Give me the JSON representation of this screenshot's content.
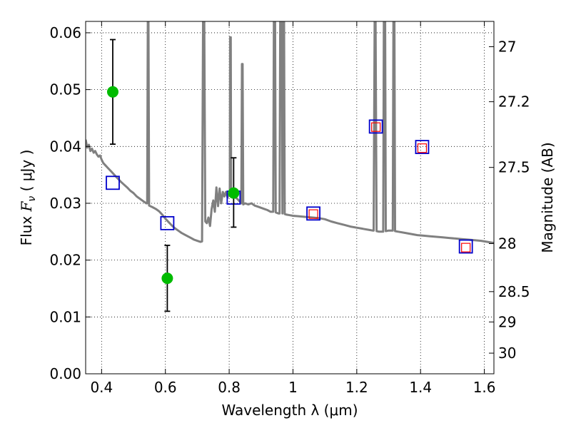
{
  "chart_data": {
    "type": "scatter",
    "xlabel": "Wavelength  λ (μm)",
    "ylabel": "Flux  F_ν  ( μJy )",
    "ylabel_right": "Magnitude (AB)",
    "xlim": [
      0.35,
      1.63
    ],
    "ylim": [
      0.0,
      0.062
    ],
    "grid": true,
    "x_ticks": [
      {
        "value": 0.4,
        "label": "0.4"
      },
      {
        "value": 0.6,
        "label": "0.6"
      },
      {
        "value": 0.8,
        "label": "0.8"
      },
      {
        "value": 1.0,
        "label": "1"
      },
      {
        "value": 1.2,
        "label": "1.2"
      },
      {
        "value": 1.4,
        "label": "1.4"
      },
      {
        "value": 1.6,
        "label": "1.6"
      }
    ],
    "y_ticks": [
      {
        "value": 0.0,
        "label": "0.00"
      },
      {
        "value": 0.01,
        "label": "0.01"
      },
      {
        "value": 0.02,
        "label": "0.02"
      },
      {
        "value": 0.03,
        "label": "0.03"
      },
      {
        "value": 0.04,
        "label": "0.04"
      },
      {
        "value": 0.05,
        "label": "0.05"
      },
      {
        "value": 0.06,
        "label": "0.06"
      }
    ],
    "right_ticks": [
      {
        "value": 27,
        "label": "27"
      },
      {
        "value": 27.2,
        "label": "27.2"
      },
      {
        "value": 27.5,
        "label": "27.5"
      },
      {
        "value": 28,
        "label": "28"
      },
      {
        "value": 28.5,
        "label": "28.5"
      },
      {
        "value": 29,
        "label": "29"
      },
      {
        "value": 30,
        "label": "30"
      }
    ],
    "model_spectrum": {
      "color": "#808080",
      "points": [
        [
          0.35,
          0.0412
        ],
        [
          0.355,
          0.0398
        ],
        [
          0.36,
          0.0403
        ],
        [
          0.365,
          0.0392
        ],
        [
          0.37,
          0.0396
        ],
        [
          0.375,
          0.0389
        ],
        [
          0.38,
          0.0392
        ],
        [
          0.385,
          0.0386
        ],
        [
          0.39,
          0.0382
        ],
        [
          0.395,
          0.0384
        ],
        [
          0.4,
          0.0377
        ],
        [
          0.405,
          0.0371
        ],
        [
          0.41,
          0.0368
        ],
        [
          0.42,
          0.0362
        ],
        [
          0.43,
          0.0356
        ],
        [
          0.44,
          0.035
        ],
        [
          0.45,
          0.0344
        ],
        [
          0.46,
          0.0338
        ],
        [
          0.47,
          0.0333
        ],
        [
          0.48,
          0.0328
        ],
        [
          0.49,
          0.0322
        ],
        [
          0.5,
          0.0318
        ],
        [
          0.51,
          0.0312
        ],
        [
          0.52,
          0.0308
        ],
        [
          0.53,
          0.0304
        ],
        [
          0.54,
          0.03
        ],
        [
          0.543,
          0.03
        ],
        [
          0.545,
          0.062
        ],
        [
          0.547,
          0.062
        ],
        [
          0.549,
          0.0296
        ],
        [
          0.56,
          0.0293
        ],
        [
          0.57,
          0.029
        ],
        [
          0.58,
          0.0286
        ],
        [
          0.59,
          0.028
        ],
        [
          0.6,
          0.0273
        ],
        [
          0.61,
          0.0267
        ],
        [
          0.62,
          0.0261
        ],
        [
          0.63,
          0.0256
        ],
        [
          0.64,
          0.0252
        ],
        [
          0.65,
          0.0248
        ],
        [
          0.66,
          0.0245
        ],
        [
          0.67,
          0.0242
        ],
        [
          0.68,
          0.0239
        ],
        [
          0.69,
          0.0236
        ],
        [
          0.7,
          0.0234
        ],
        [
          0.71,
          0.0232
        ],
        [
          0.715,
          0.0233
        ],
        [
          0.718,
          0.062
        ],
        [
          0.722,
          0.062
        ],
        [
          0.725,
          0.0268
        ],
        [
          0.73,
          0.0265
        ],
        [
          0.735,
          0.0275
        ],
        [
          0.74,
          0.026
        ],
        [
          0.745,
          0.029
        ],
        [
          0.75,
          0.0305
        ],
        [
          0.755,
          0.0285
        ],
        [
          0.76,
          0.0328
        ],
        [
          0.765,
          0.0295
        ],
        [
          0.77,
          0.0326
        ],
        [
          0.775,
          0.03
        ],
        [
          0.78,
          0.032
        ],
        [
          0.785,
          0.0312
        ],
        [
          0.79,
          0.032
        ],
        [
          0.795,
          0.031
        ],
        [
          0.8,
          0.0318
        ],
        [
          0.802,
          0.0318
        ],
        [
          0.803,
          0.0592
        ],
        [
          0.805,
          0.0592
        ],
        [
          0.806,
          0.0316
        ],
        [
          0.81,
          0.0314
        ],
        [
          0.815,
          0.0312
        ],
        [
          0.82,
          0.031
        ],
        [
          0.825,
          0.0308
        ],
        [
          0.83,
          0.0305
        ],
        [
          0.835,
          0.0302
        ],
        [
          0.838,
          0.03
        ],
        [
          0.84,
          0.0545
        ],
        [
          0.842,
          0.0545
        ],
        [
          0.844,
          0.0298
        ],
        [
          0.85,
          0.03
        ],
        [
          0.86,
          0.0298
        ],
        [
          0.87,
          0.03
        ],
        [
          0.88,
          0.0296
        ],
        [
          0.89,
          0.0294
        ],
        [
          0.9,
          0.0292
        ],
        [
          0.91,
          0.029
        ],
        [
          0.92,
          0.0288
        ],
        [
          0.93,
          0.0285
        ],
        [
          0.938,
          0.0285
        ],
        [
          0.94,
          0.062
        ],
        [
          0.944,
          0.062
        ],
        [
          0.946,
          0.0284
        ],
        [
          0.95,
          0.0283
        ],
        [
          0.955,
          0.0282
        ],
        [
          0.958,
          0.0282
        ],
        [
          0.96,
          0.062
        ],
        [
          0.965,
          0.062
        ],
        [
          0.967,
          0.0282
        ],
        [
          0.968,
          0.062
        ],
        [
          0.972,
          0.062
        ],
        [
          0.974,
          0.0281
        ],
        [
          0.98,
          0.028
        ],
        [
          0.99,
          0.0279
        ],
        [
          1.0,
          0.0278
        ],
        [
          1.02,
          0.0277
        ],
        [
          1.04,
          0.0276
        ],
        [
          1.06,
          0.0275
        ],
        [
          1.08,
          0.0274
        ],
        [
          1.1,
          0.0272
        ],
        [
          1.12,
          0.0268
        ],
        [
          1.14,
          0.0265
        ],
        [
          1.16,
          0.0262
        ],
        [
          1.18,
          0.0259
        ],
        [
          1.2,
          0.0257
        ],
        [
          1.22,
          0.0255
        ],
        [
          1.24,
          0.0253
        ],
        [
          1.25,
          0.0252
        ],
        [
          1.253,
          0.0252
        ],
        [
          1.256,
          0.062
        ],
        [
          1.259,
          0.062
        ],
        [
          1.262,
          0.0251
        ],
        [
          1.27,
          0.025
        ],
        [
          1.28,
          0.025
        ],
        [
          1.283,
          0.025
        ],
        [
          1.285,
          0.062
        ],
        [
          1.289,
          0.062
        ],
        [
          1.291,
          0.0251
        ],
        [
          1.3,
          0.0252
        ],
        [
          1.31,
          0.0252
        ],
        [
          1.313,
          0.0252
        ],
        [
          1.315,
          0.062
        ],
        [
          1.318,
          0.062
        ],
        [
          1.32,
          0.0251
        ],
        [
          1.33,
          0.025
        ],
        [
          1.35,
          0.0248
        ],
        [
          1.37,
          0.0246
        ],
        [
          1.39,
          0.0244
        ],
        [
          1.41,
          0.0243
        ],
        [
          1.43,
          0.0242
        ],
        [
          1.45,
          0.0241
        ],
        [
          1.47,
          0.024
        ],
        [
          1.49,
          0.0239
        ],
        [
          1.51,
          0.0238
        ],
        [
          1.53,
          0.0237
        ],
        [
          1.55,
          0.0236
        ],
        [
          1.57,
          0.0235
        ],
        [
          1.59,
          0.0234
        ],
        [
          1.61,
          0.0232
        ],
        [
          1.63,
          0.023
        ]
      ]
    },
    "model_photometry": {
      "marker": "open-square",
      "color": "#0000cc",
      "points": [
        {
          "x": 0.435,
          "y": 0.0336
        },
        {
          "x": 0.606,
          "y": 0.0265
        },
        {
          "x": 0.814,
          "y": 0.031
        },
        {
          "x": 1.064,
          "y": 0.0282
        },
        {
          "x": 1.26,
          "y": 0.0435
        },
        {
          "x": 1.405,
          "y": 0.0399
        },
        {
          "x": 1.542,
          "y": 0.0224
        }
      ]
    },
    "inner_squares": {
      "marker": "open-square",
      "color": "#ff0000",
      "points": [
        {
          "x": 1.064,
          "y": 0.0281
        },
        {
          "x": 1.26,
          "y": 0.0434
        },
        {
          "x": 1.405,
          "y": 0.0397
        },
        {
          "x": 1.542,
          "y": 0.0222
        }
      ]
    },
    "observed": {
      "marker": "filled-circle",
      "color": "#00bb00",
      "errorbar_color": "#000000",
      "points": [
        {
          "x": 0.435,
          "y": 0.0496,
          "yerr_low": 0.0092,
          "yerr_high": 0.0092
        },
        {
          "x": 0.606,
          "y": 0.0168,
          "yerr_low": 0.0058,
          "yerr_high": 0.0058
        },
        {
          "x": 0.814,
          "y": 0.0318,
          "yerr_low": 0.006,
          "yerr_high": 0.0062
        }
      ]
    },
    "colors": {
      "grid": "#000000",
      "axes": "#000000"
    }
  }
}
